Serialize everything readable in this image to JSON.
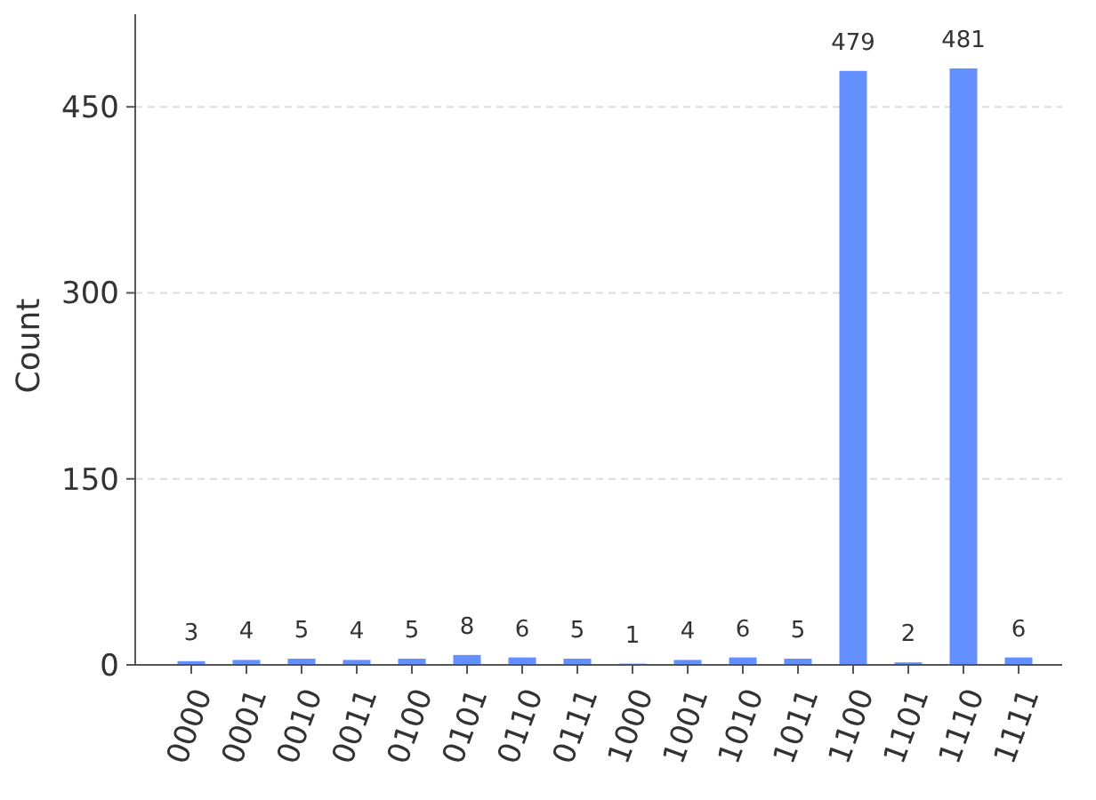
{
  "chart_data": {
    "type": "bar",
    "ylabel": "Count",
    "categories": [
      "0000",
      "0001",
      "0010",
      "0011",
      "0100",
      "0101",
      "0110",
      "0111",
      "1000",
      "1001",
      "1010",
      "1011",
      "1100",
      "1101",
      "1110",
      "1111"
    ],
    "values": [
      3,
      4,
      5,
      4,
      5,
      8,
      6,
      5,
      1,
      4,
      6,
      5,
      479,
      2,
      481,
      6
    ],
    "color": "#648fff",
    "ylim": [
      0,
      529
    ],
    "yticks": [
      0,
      150,
      300,
      450
    ],
    "grid": "y",
    "data_labels": true
  }
}
